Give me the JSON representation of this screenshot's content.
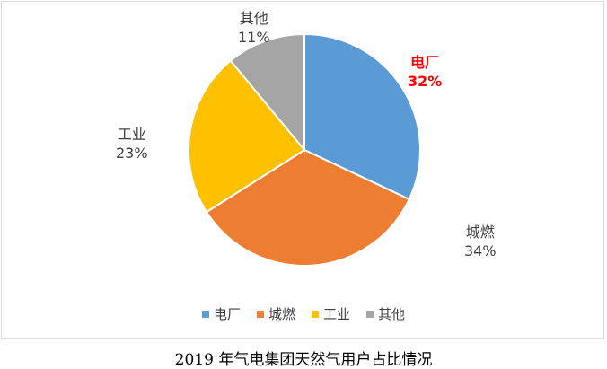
{
  "chart_data": {
    "type": "pie",
    "categories": [
      "电厂",
      "城燃",
      "工业",
      "其他"
    ],
    "values": [
      32,
      34,
      23,
      11
    ],
    "percent_labels": [
      "32%",
      "34%",
      "23%",
      "11%"
    ],
    "colors": [
      "#5b9bd5",
      "#ed7d31",
      "#ffc000",
      "#a5a5a5"
    ],
    "highlight_color": "#ff0000",
    "highlighted_category": "电厂",
    "legend_position": "bottom",
    "start_angle_deg": 0,
    "direction": "clockwise"
  },
  "caption": "2019 年气电集团天然气用户占比情况"
}
